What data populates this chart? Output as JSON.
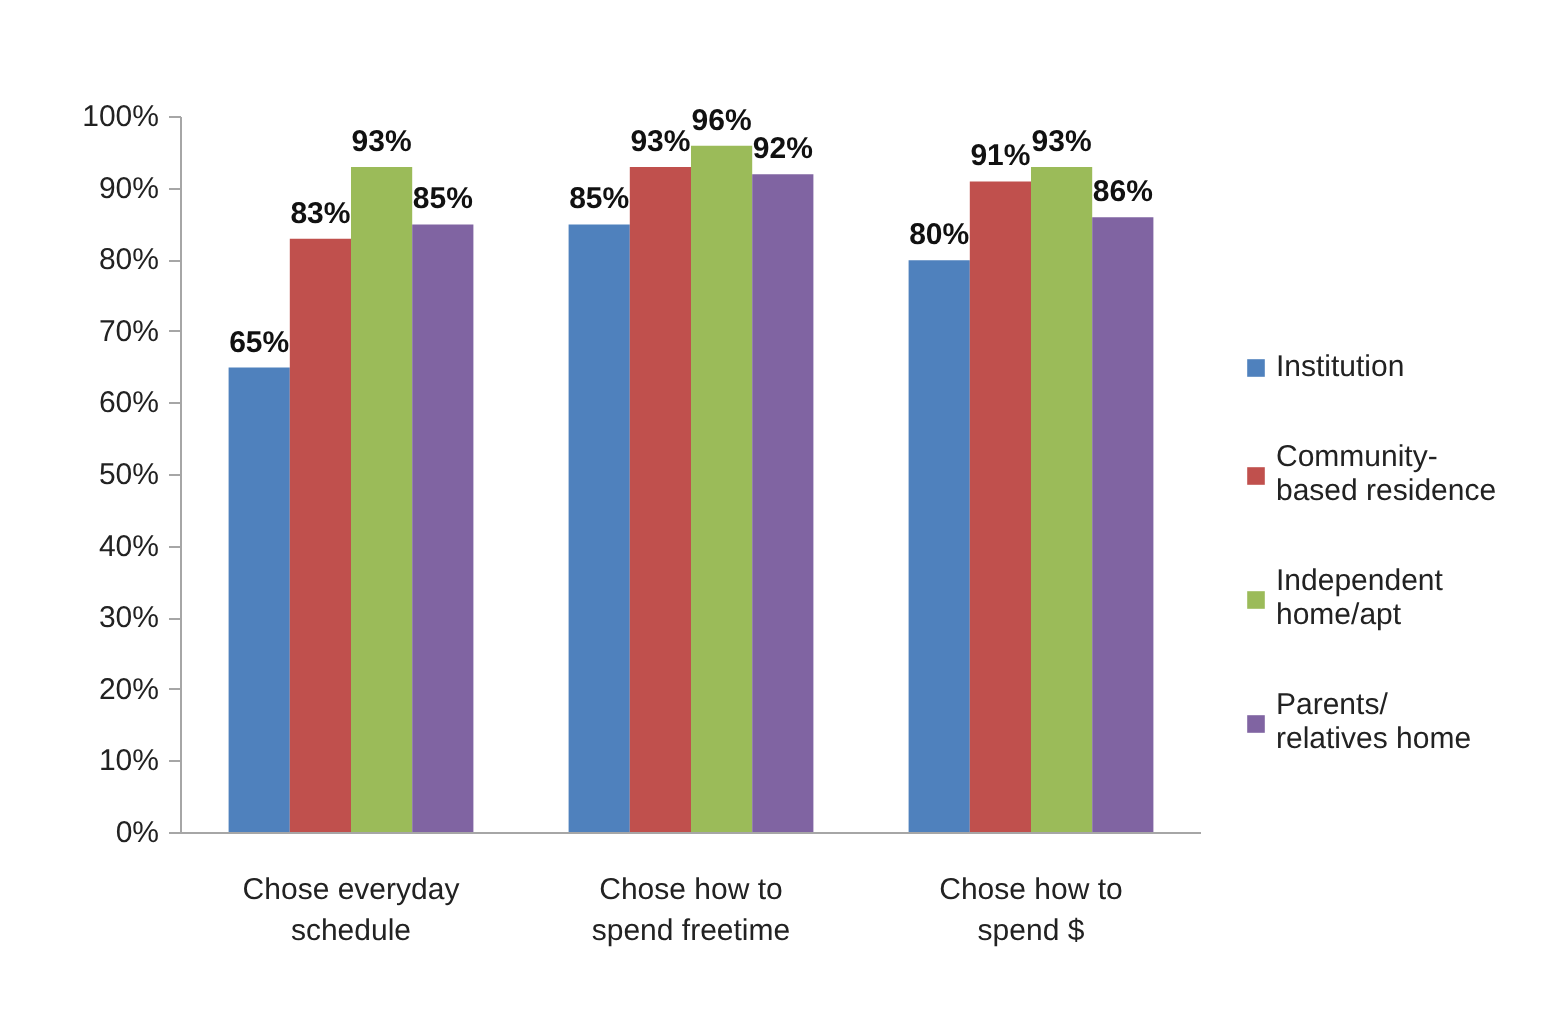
{
  "chart_data": {
    "type": "bar",
    "categories": [
      "Chose everyday\nschedule",
      "Chose how to\nspend freetime",
      "Chose how to\nspend $"
    ],
    "series": [
      {
        "name": "Institution",
        "color": "#4f81bd",
        "values": [
          65,
          85,
          80
        ],
        "value_labels": [
          "65%",
          "85%",
          "80%"
        ]
      },
      {
        "name": "Community-\nbased residence",
        "color": "#c0504d",
        "values": [
          83,
          93,
          91
        ],
        "value_labels": [
          "83%",
          "93%",
          "91%"
        ]
      },
      {
        "name": "Independent\nhome/apt",
        "color": "#9bbb59",
        "values": [
          93,
          96,
          93
        ],
        "value_labels": [
          "93%",
          "96%",
          "93%"
        ]
      },
      {
        "name": "Parents/\nrelatives home",
        "color": "#8064a2",
        "values": [
          85,
          92,
          86
        ],
        "value_labels": [
          "85%",
          "92%",
          "86%"
        ]
      }
    ],
    "ylim": [
      0,
      100
    ],
    "yticks": [
      {
        "value": 0,
        "label": "0%"
      },
      {
        "value": 10,
        "label": "10%"
      },
      {
        "value": 20,
        "label": "20%"
      },
      {
        "value": 30,
        "label": "30%"
      },
      {
        "value": 40,
        "label": "40%"
      },
      {
        "value": 50,
        "label": "50%"
      },
      {
        "value": 60,
        "label": "60%"
      },
      {
        "value": 70,
        "label": "70%"
      },
      {
        "value": 80,
        "label": "80%"
      },
      {
        "value": 90,
        "label": "90%"
      },
      {
        "value": 100,
        "label": "100%"
      }
    ],
    "legend": "right"
  }
}
